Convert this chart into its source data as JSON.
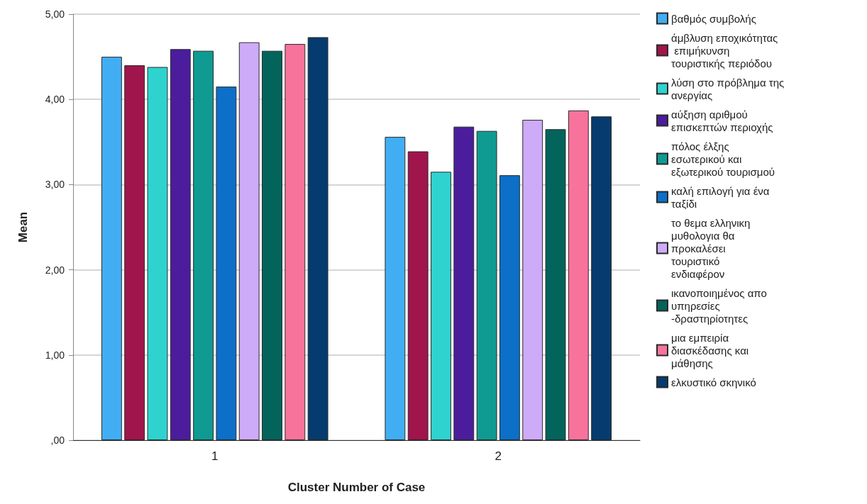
{
  "chart_data": {
    "type": "bar",
    "xlabel": "Cluster Number of Case",
    "ylabel": "Mean",
    "categories": [
      "1",
      "2"
    ],
    "series": [
      {
        "name": "βαθμός συμβολής",
        "color": "#41aef4",
        "values": [
          4.5,
          3.56
        ]
      },
      {
        "name": "άμβλυση εποχικότητας επιμήκυνση τουριστικής περιόδου",
        "color": "#a0154c",
        "values": [
          4.4,
          3.39
        ]
      },
      {
        "name": "λύση στο πρόβλημα της ανεργίας",
        "color": "#2ed3cf",
        "values": [
          4.38,
          3.15
        ]
      },
      {
        "name": "αύξηση αριθμού επισκεπτών περιοχής",
        "color": "#4b1d9c",
        "values": [
          4.59,
          3.68
        ]
      },
      {
        "name": "πόλος έλξης εσωτερικού και εξωτερικού τουρισμού",
        "color": "#0f9a92",
        "values": [
          4.57,
          3.63
        ]
      },
      {
        "name": "καλή επιλογή για ένα ταξίδι",
        "color": "#0c6fc8",
        "values": [
          4.15,
          3.11
        ]
      },
      {
        "name": "το θεμα ελληνικη μυθολογια θα προκαλέσει τουριστικό ενδιαφέρον",
        "color": "#cdabf9",
        "values": [
          4.67,
          3.76
        ]
      },
      {
        "name": "ικανοποιημένος απο υπηρεσίες -δραστηρίοτητες",
        "color": "#03645c",
        "values": [
          4.57,
          3.65
        ]
      },
      {
        "name": "μια εμπειρία διασκέδασης και μάθησης",
        "color": "#f7739c",
        "values": [
          4.65,
          3.87
        ]
      },
      {
        "name": "ελκυστικό σκηνικό",
        "color": "#053b6f",
        "values": [
          4.73,
          3.8
        ]
      }
    ],
    "ylim": [
      0,
      5
    ],
    "yticks": [
      {
        "value": 0,
        "label": ",00"
      },
      {
        "value": 1,
        "label": "1,00"
      },
      {
        "value": 2,
        "label": "2,00"
      },
      {
        "value": 3,
        "label": "3,00"
      },
      {
        "value": 4,
        "label": "4,00"
      },
      {
        "value": 5,
        "label": "5,00"
      }
    ],
    "grid": "y",
    "legend": "right"
  }
}
